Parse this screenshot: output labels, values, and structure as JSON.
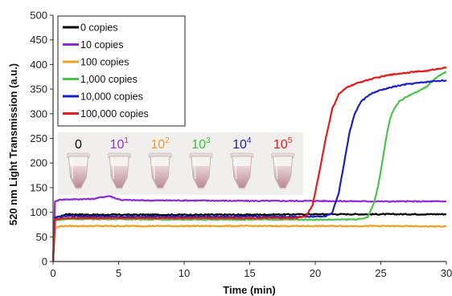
{
  "chart_data": {
    "type": "line",
    "xlabel": "Time (min)",
    "ylabel": "520 nm Light Transmission (a.u.)",
    "xlim": [
      0,
      30
    ],
    "ylim": [
      0,
      500
    ],
    "xticks": [
      "0",
      "5",
      "10",
      "15",
      "20",
      "25",
      "30"
    ],
    "yticks": [
      "0",
      "50",
      "100",
      "150",
      "200",
      "250",
      "300",
      "350",
      "400",
      "450",
      "500"
    ],
    "grid": false,
    "legend_position": "top-left",
    "series": [
      {
        "name": "0 copies",
        "color": "#000000",
        "points": [
          [
            0,
            0
          ],
          [
            0.15,
            88
          ],
          [
            0.6,
            92
          ],
          [
            1,
            96
          ],
          [
            3,
            95
          ],
          [
            6,
            95
          ],
          [
            10,
            95
          ],
          [
            15,
            95
          ],
          [
            20,
            96
          ],
          [
            25,
            96
          ],
          [
            30,
            96
          ]
        ]
      },
      {
        "name": "10 copies",
        "color": "#8e2bd6",
        "points": [
          [
            0,
            0
          ],
          [
            0.15,
            122
          ],
          [
            0.6,
            126
          ],
          [
            1,
            126
          ],
          [
            3,
            127
          ],
          [
            3.8,
            131
          ],
          [
            4.3,
            133
          ],
          [
            4.7,
            129
          ],
          [
            5.2,
            125
          ],
          [
            7,
            124
          ],
          [
            10,
            124
          ],
          [
            15,
            123
          ],
          [
            20,
            123
          ],
          [
            25,
            122
          ],
          [
            27,
            122
          ],
          [
            30,
            122
          ]
        ]
      },
      {
        "name": "100 copies",
        "color": "#f0a020",
        "points": [
          [
            0,
            0
          ],
          [
            0.15,
            68
          ],
          [
            0.6,
            72
          ],
          [
            1,
            72
          ],
          [
            5,
            72
          ],
          [
            10,
            72
          ],
          [
            15,
            72
          ],
          [
            20,
            72
          ],
          [
            25,
            72
          ],
          [
            30,
            71
          ]
        ]
      },
      {
        "name": "1,000 copies",
        "color": "#4cc44c",
        "points": [
          [
            0,
            0
          ],
          [
            0.15,
            83
          ],
          [
            0.6,
            85
          ],
          [
            1,
            86
          ],
          [
            5,
            86
          ],
          [
            10,
            85
          ],
          [
            15,
            85
          ],
          [
            20,
            85
          ],
          [
            22,
            85
          ],
          [
            23.5,
            86
          ],
          [
            24,
            90
          ],
          [
            24.5,
            120
          ],
          [
            24.8,
            155
          ],
          [
            25.1,
            200
          ],
          [
            25.4,
            250
          ],
          [
            25.7,
            290
          ],
          [
            26,
            310
          ],
          [
            26.4,
            325
          ],
          [
            27,
            335
          ],
          [
            27.8,
            345
          ],
          [
            28.5,
            355
          ],
          [
            29.3,
            375
          ],
          [
            30,
            385
          ]
        ]
      },
      {
        "name": "10,000 copies",
        "color": "#1a20c8",
        "points": [
          [
            0,
            0
          ],
          [
            0.15,
            90
          ],
          [
            0.6,
            91
          ],
          [
            1,
            92
          ],
          [
            5,
            91
          ],
          [
            10,
            91
          ],
          [
            15,
            91
          ],
          [
            19,
            91
          ],
          [
            20.8,
            92
          ],
          [
            21.3,
            100
          ],
          [
            21.8,
            140
          ],
          [
            22.2,
            200
          ],
          [
            22.6,
            260
          ],
          [
            23,
            300
          ],
          [
            23.5,
            325
          ],
          [
            24.2,
            340
          ],
          [
            25,
            348
          ],
          [
            26,
            355
          ],
          [
            27,
            360
          ],
          [
            28,
            363
          ],
          [
            29,
            366
          ],
          [
            30,
            368
          ]
        ]
      },
      {
        "name": "100,000 copies",
        "color": "#e51b1b",
        "points": [
          [
            0,
            0
          ],
          [
            0.15,
            86
          ],
          [
            0.6,
            87
          ],
          [
            1,
            88
          ],
          [
            5,
            88
          ],
          [
            10,
            88
          ],
          [
            15,
            88
          ],
          [
            18.5,
            88
          ],
          [
            19.3,
            92
          ],
          [
            19.8,
            115
          ],
          [
            20.3,
            180
          ],
          [
            20.8,
            250
          ],
          [
            21.3,
            310
          ],
          [
            21.8,
            340
          ],
          [
            22.5,
            355
          ],
          [
            23.5,
            365
          ],
          [
            24.5,
            372
          ],
          [
            25.5,
            378
          ],
          [
            26.5,
            382
          ],
          [
            27.5,
            385
          ],
          [
            28.5,
            387
          ],
          [
            29.5,
            392
          ],
          [
            30,
            394
          ]
        ]
      }
    ],
    "inset": {
      "tubes": [
        {
          "base": "0",
          "exp": "",
          "color": "#000000"
        },
        {
          "base": "10",
          "exp": "1",
          "color": "#9b30d9"
        },
        {
          "base": "10",
          "exp": "2",
          "color": "#f0a020"
        },
        {
          "base": "10",
          "exp": "3",
          "color": "#3cbf3c"
        },
        {
          "base": "10",
          "exp": "4",
          "color": "#1a20c8"
        },
        {
          "base": "10",
          "exp": "5",
          "color": "#e51b1b"
        }
      ]
    }
  }
}
